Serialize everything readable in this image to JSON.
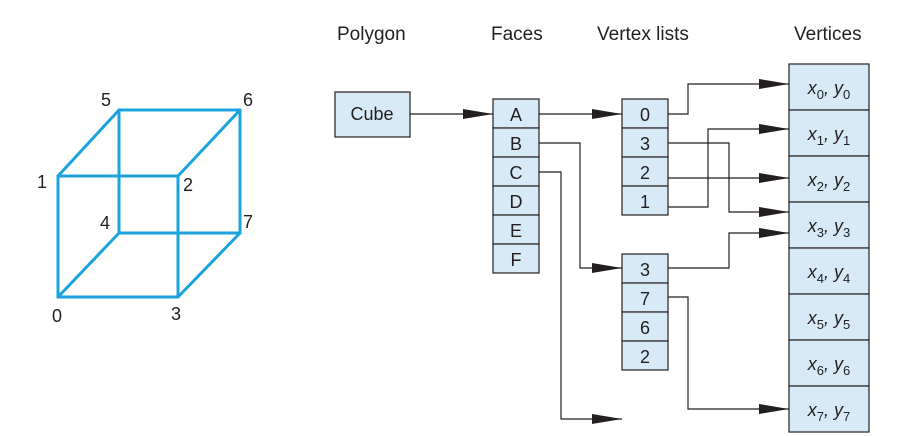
{
  "headers": {
    "polygon": "Polygon",
    "faces": "Faces",
    "vertex_lists": "Vertex lists",
    "vertices": "Vertices"
  },
  "polygon": {
    "label": "Cube"
  },
  "faces": [
    "A",
    "B",
    "C",
    "D",
    "E",
    "F"
  ],
  "vertex_list_1": [
    "0",
    "3",
    "2",
    "1"
  ],
  "vertex_list_2": [
    "3",
    "7",
    "6",
    "2"
  ],
  "vertices": [
    {
      "x": "x",
      "y": "y",
      "i": "0"
    },
    {
      "x": "x",
      "y": "y",
      "i": "1"
    },
    {
      "x": "x",
      "y": "y",
      "i": "2"
    },
    {
      "x": "x",
      "y": "y",
      "i": "3"
    },
    {
      "x": "x",
      "y": "y",
      "i": "4"
    },
    {
      "x": "x",
      "y": "y",
      "i": "5"
    },
    {
      "x": "x",
      "y": "y",
      "i": "6"
    },
    {
      "x": "x",
      "y": "y",
      "i": "7"
    }
  ],
  "cube_labels": {
    "v0": "0",
    "v1": "1",
    "v2": "2",
    "v3": "3",
    "v4": "4",
    "v5": "5",
    "v6": "6",
    "v7": "7"
  },
  "colors": {
    "cube_edge": "#1aa3dc",
    "cell_fill": "#d6ebf7",
    "line": "#231f20"
  }
}
